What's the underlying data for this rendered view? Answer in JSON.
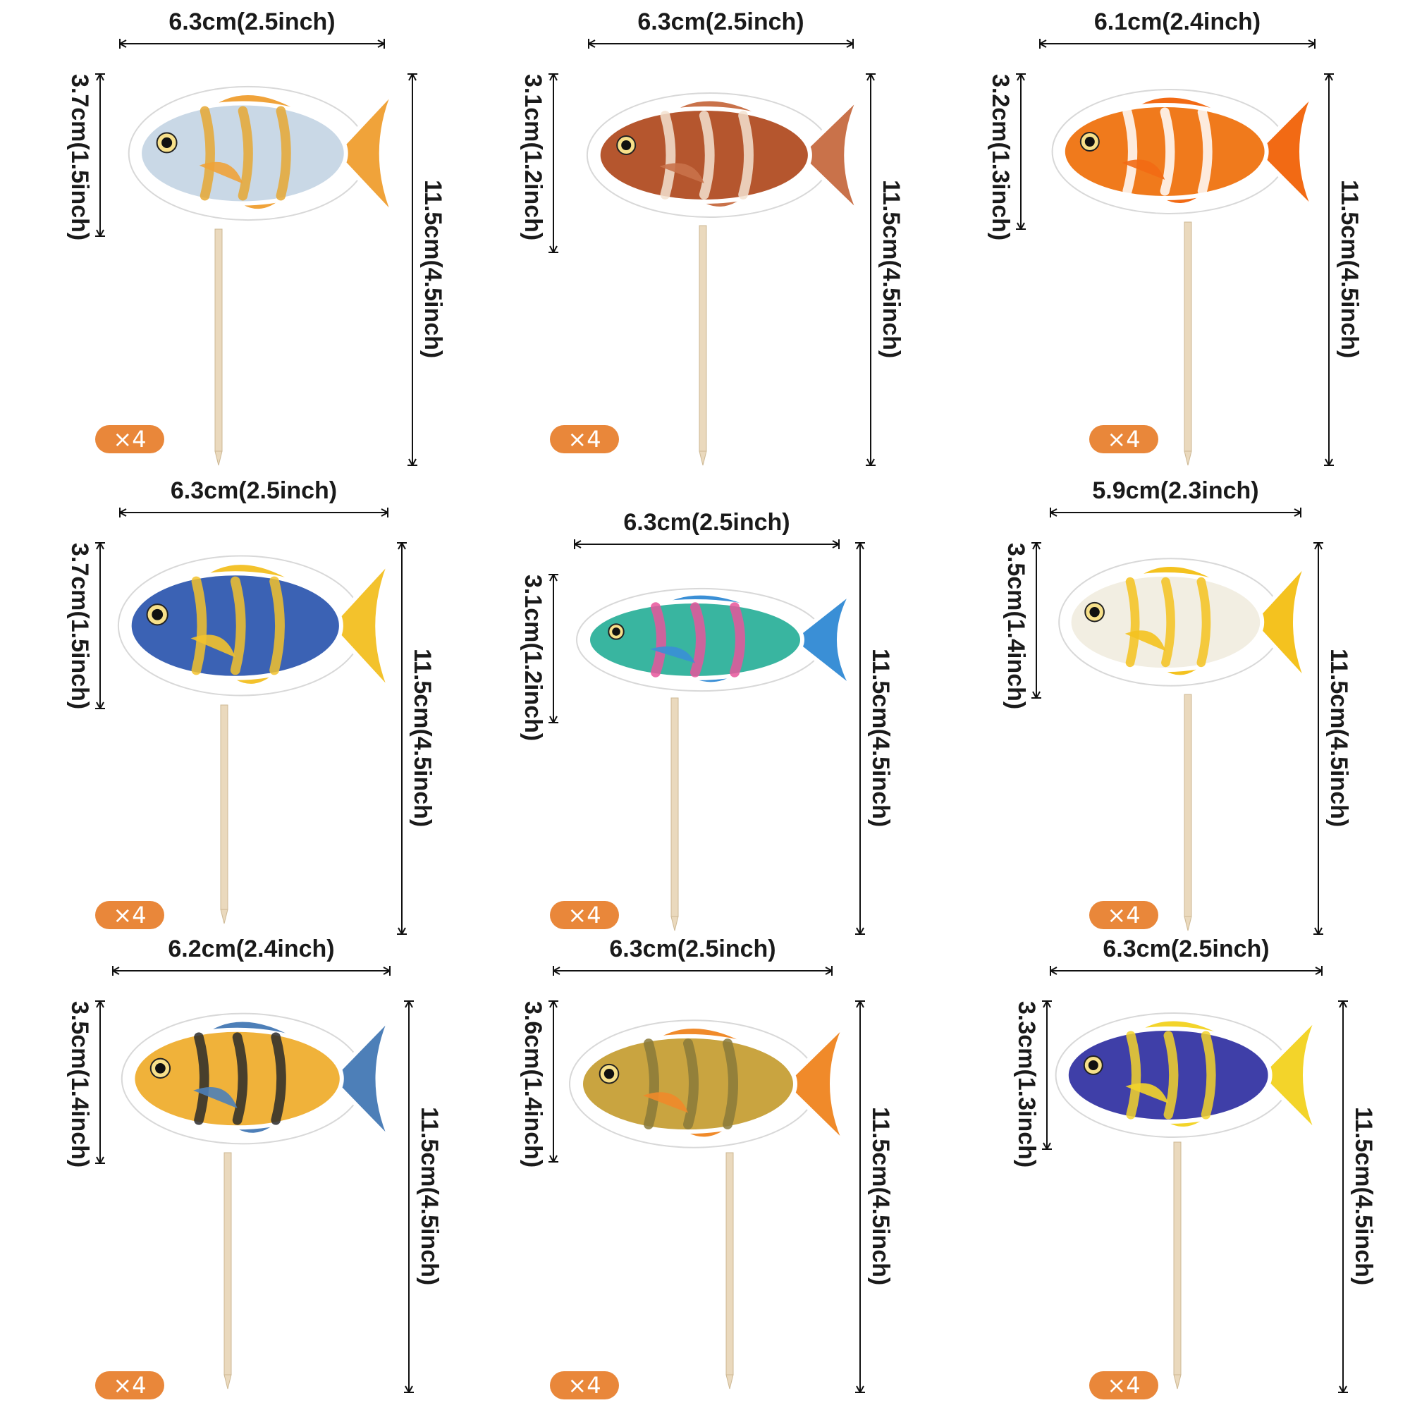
{
  "toppers": [
    {
      "fish": "pompano-fish",
      "width_label": "6.3cm(2.5inch)",
      "height_label": "3.7cm(1.5inch)",
      "total_label": "11.5cm(4.5inch)",
      "qty": "×4",
      "colors": {
        "body": "#c9d8e6",
        "accent": "#e6a832",
        "fin": "#f0a33a"
      }
    },
    {
      "fish": "lionfish",
      "width_label": "6.3cm(2.5inch)",
      "height_label": "3.1cm(1.2inch)",
      "total_label": "11.5cm(4.5inch)",
      "qty": "×4",
      "colors": {
        "body": "#b5562e",
        "accent": "#f3e2d0",
        "fin": "#c9724a"
      }
    },
    {
      "fish": "clownfish",
      "width_label": "6.1cm(2.4inch)",
      "height_label": "3.2cm(1.3inch)",
      "total_label": "11.5cm(4.5inch)",
      "qty": "×4",
      "colors": {
        "body": "#f07a1c",
        "accent": "#ffffff",
        "fin": "#f26a14"
      }
    },
    {
      "fish": "emperor-angelfish",
      "width_label": "6.3cm(2.5inch)",
      "height_label": "3.7cm(1.5inch)",
      "total_label": "11.5cm(4.5inch)",
      "qty": "×4",
      "colors": {
        "body": "#3b62b4",
        "accent": "#f3c22c",
        "fin": "#f3c22c"
      }
    },
    {
      "fish": "parrotfish",
      "width_label": "6.3cm(2.5inch)",
      "height_label": "3.1cm(1.2inch)",
      "total_label": "11.5cm(4.5inch)",
      "qty": "×4",
      "colors": {
        "body": "#39b5a0",
        "accent": "#e8559b",
        "fin": "#3a8fd6"
      }
    },
    {
      "fish": "butterflyfish",
      "width_label": "5.9cm(2.3inch)",
      "height_label": "3.5cm(1.4inch)",
      "total_label": "11.5cm(4.5inch)",
      "qty": "×4",
      "colors": {
        "body": "#f2eee2",
        "accent": "#f4c21f",
        "fin": "#f4c21f"
      }
    },
    {
      "fish": "regal-angelfish",
      "width_label": "6.2cm(2.4inch)",
      "height_label": "3.5cm(1.4inch)",
      "total_label": "11.5cm(4.5inch)",
      "qty": "×4",
      "colors": {
        "body": "#f0b23a",
        "accent": "#2a2a2a",
        "fin": "#4d7fb8"
      }
    },
    {
      "fish": "golden-carp",
      "width_label": "6.3cm(2.5inch)",
      "height_label": "3.6cm(1.4inch)",
      "total_label": "11.5cm(4.5inch)",
      "qty": "×4",
      "colors": {
        "body": "#c9a440",
        "accent": "#8a7a3a",
        "fin": "#f08a2a"
      }
    },
    {
      "fish": "powder-blue-tang",
      "width_label": "6.3cm(2.5inch)",
      "height_label": "3.3cm(1.3inch)",
      "total_label": "11.5cm(4.5inch)",
      "qty": "×4",
      "colors": {
        "body": "#3f3fa8",
        "accent": "#f3d42a",
        "fin": "#f3d42a"
      }
    }
  ]
}
